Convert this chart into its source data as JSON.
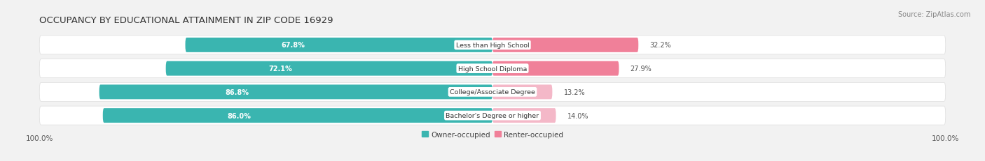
{
  "title": "OCCUPANCY BY EDUCATIONAL ATTAINMENT IN ZIP CODE 16929",
  "source": "Source: ZipAtlas.com",
  "categories": [
    "Less than High School",
    "High School Diploma",
    "College/Associate Degree",
    "Bachelor's Degree or higher"
  ],
  "owner_pct": [
    67.8,
    72.1,
    86.8,
    86.0
  ],
  "renter_pct": [
    32.2,
    27.9,
    13.2,
    14.0
  ],
  "owner_color": "#3ab5b0",
  "renter_color": "#f08099",
  "renter_color_light": "#f4b8c8",
  "bg_color": "#f2f2f2",
  "bar_track_color": "#e2e2e2",
  "title_fontsize": 9.5,
  "label_fontsize": 7.0,
  "tick_fontsize": 7.5,
  "source_fontsize": 7.0,
  "legend_fontsize": 7.5
}
